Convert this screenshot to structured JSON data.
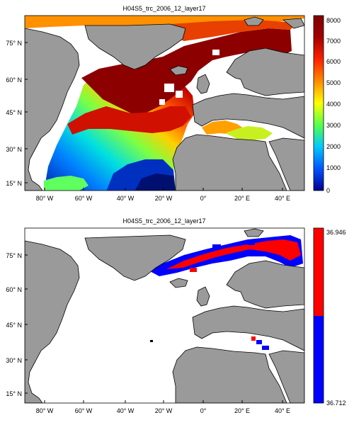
{
  "panel1": {
    "title": "H04S5_trc_2006_12_layer17",
    "lat_labels": [
      "75° N",
      "60° N",
      "45° N",
      "30° N",
      "15° N"
    ],
    "lon_labels": [
      "80° W",
      "60° W",
      "40° W",
      "20° W",
      "0°",
      "20° E",
      "40° E"
    ],
    "colorbar": {
      "ticks": [
        "8000",
        "7000",
        "6000",
        "5000",
        "4000",
        "3000",
        "2000",
        "1000",
        "0"
      ],
      "colors": [
        "#00008f",
        "#0050ff",
        "#00c8ff",
        "#50ff50",
        "#ffff00",
        "#ff9000",
        "#ff2000",
        "#a00000",
        "#800000"
      ]
    }
  },
  "panel2": {
    "title": "H04S5_trc_2006_12_layer17",
    "lat_labels": [
      "75° N",
      "60° N",
      "45° N",
      "30° N",
      "15° N"
    ],
    "lon_labels": [
      "80° W",
      "60° W",
      "40° W",
      "20° W",
      "0°",
      "20° E",
      "40° E"
    ],
    "colorbar": {
      "top_label": "36.946",
      "bottom_label": "36.712",
      "colors": [
        "#ff0000",
        "#0000ff"
      ]
    }
  },
  "colors": {
    "land": "#9a9a9a",
    "coast": "#000000",
    "ocean_blank": "#ffffff",
    "high_value": "#ff0000",
    "low_value": "#0000ff"
  }
}
